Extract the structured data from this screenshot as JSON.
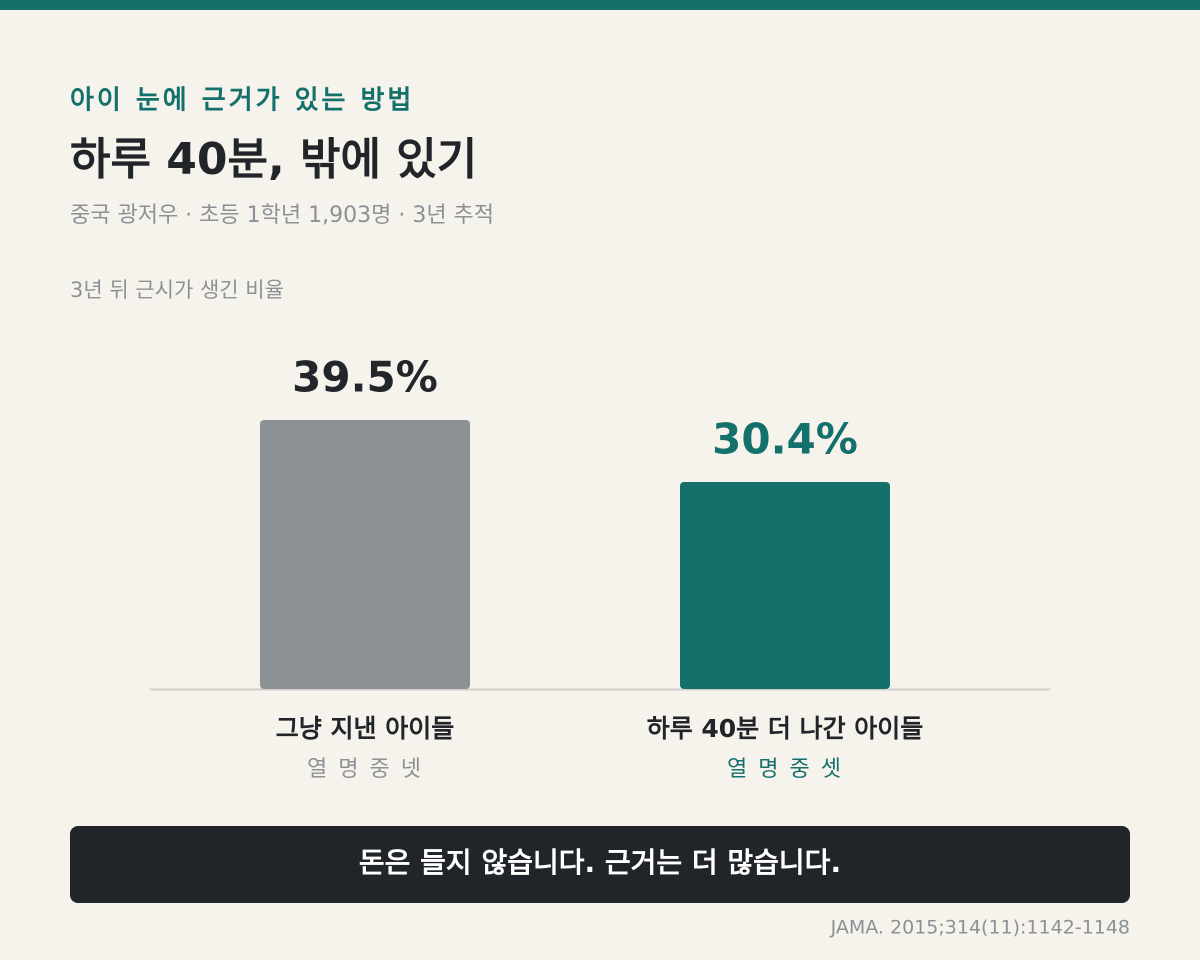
{
  "kicker": "아이 눈에 근거가 있는 방법",
  "chart_data": {
    "type": "bar",
    "title": "하루 40분, 밖에 있기",
    "subtitle": "중국 광저우 · 초등 1학년 1,903명 · 3년 추적",
    "y_label": "3년 뒤 근시가 생긴 비율",
    "categories": [
      "그냥 지낸 아이들",
      "하루 40분 더 나간 아이들"
    ],
    "category_notes": [
      "열 명 중 넷",
      "열 명 중 셋"
    ],
    "values": [
      39.5,
      30.4
    ],
    "value_labels": [
      "39.5%",
      "30.4%"
    ],
    "colors": [
      "#8b9194",
      "#13706b"
    ],
    "value_label_colors": [
      "#22262a",
      "#13706b"
    ]
  },
  "banner": "돈은 들지 않습니다. 근거는 더 많습니다.",
  "source": "JAMA. 2015;314(11):1142-1148"
}
